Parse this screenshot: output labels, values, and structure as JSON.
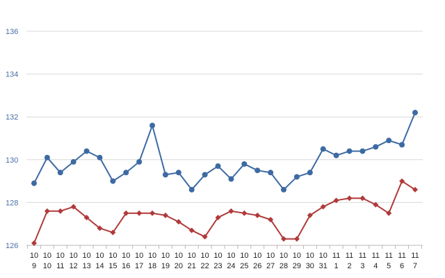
{
  "chart_data": {
    "type": "line",
    "title": "",
    "xlabel": "",
    "ylabel": "",
    "ylim": [
      126,
      136
    ],
    "yticks": [
      126,
      128,
      130,
      132,
      134,
      136
    ],
    "grid": true,
    "x": [
      {
        "top": "10",
        "bottom": "9"
      },
      {
        "top": "10",
        "bottom": "10"
      },
      {
        "top": "10",
        "bottom": "11"
      },
      {
        "top": "10",
        "bottom": "12"
      },
      {
        "top": "10",
        "bottom": "13"
      },
      {
        "top": "10",
        "bottom": "14"
      },
      {
        "top": "10",
        "bottom": "15"
      },
      {
        "top": "10",
        "bottom": "16"
      },
      {
        "top": "10",
        "bottom": "17"
      },
      {
        "top": "10",
        "bottom": "18"
      },
      {
        "top": "10",
        "bottom": "19"
      },
      {
        "top": "10",
        "bottom": "20"
      },
      {
        "top": "10",
        "bottom": "21"
      },
      {
        "top": "10",
        "bottom": "22"
      },
      {
        "top": "10",
        "bottom": "23"
      },
      {
        "top": "10",
        "bottom": "24"
      },
      {
        "top": "10",
        "bottom": "25"
      },
      {
        "top": "10",
        "bottom": "26"
      },
      {
        "top": "10",
        "bottom": "27"
      },
      {
        "top": "10",
        "bottom": "28"
      },
      {
        "top": "10",
        "bottom": "29"
      },
      {
        "top": "10",
        "bottom": "30"
      },
      {
        "top": "10",
        "bottom": "31"
      },
      {
        "top": "11",
        "bottom": "1"
      },
      {
        "top": "11",
        "bottom": "2"
      },
      {
        "top": "11",
        "bottom": "3"
      },
      {
        "top": "11",
        "bottom": "4"
      },
      {
        "top": "11",
        "bottom": "5"
      },
      {
        "top": "11",
        "bottom": "6"
      },
      {
        "top": "11",
        "bottom": "7"
      }
    ],
    "series": [
      {
        "color": "#3d6aa3",
        "marker": "circle",
        "values": [
          128.9,
          130.1,
          129.4,
          129.9,
          130.4,
          130.1,
          129.0,
          129.4,
          129.9,
          131.6,
          129.3,
          129.4,
          128.6,
          129.3,
          129.7,
          129.1,
          129.8,
          129.5,
          129.4,
          128.6,
          129.2,
          129.4,
          130.5,
          130.2,
          130.4,
          130.4,
          130.6,
          130.9,
          130.7,
          132.2
        ]
      },
      {
        "color": "#b03a3a",
        "marker": "diamond",
        "values": [
          126.1,
          127.6,
          127.6,
          127.8,
          127.3,
          126.8,
          126.6,
          127.5,
          127.5,
          127.5,
          127.4,
          127.1,
          126.7,
          126.4,
          127.3,
          127.6,
          127.5,
          127.4,
          127.2,
          126.3,
          126.3,
          127.4,
          127.8,
          128.1,
          128.2,
          128.2,
          127.9,
          127.5,
          129.0,
          128.6
        ]
      }
    ]
  }
}
